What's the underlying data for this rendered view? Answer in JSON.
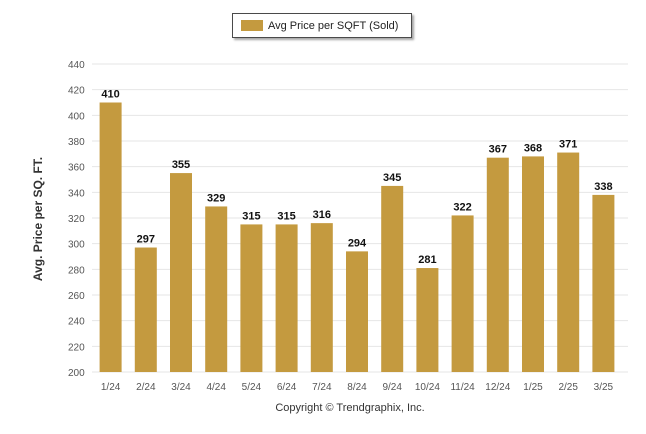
{
  "colors": {
    "bar": "#c49a3f",
    "grid": "#e6e6e6",
    "axis_text": "#555555",
    "label_text": "#111111"
  },
  "legend": {
    "label": "Avg Price per SQFT (Sold)"
  },
  "footer": {
    "copyright": "Copyright © Trendgraphix, Inc."
  },
  "chart_data": {
    "type": "bar",
    "title": "",
    "xlabel": "",
    "ylabel": "Avg. Price per SQ. FT.",
    "ylim": [
      200,
      440
    ],
    "ytick_step": 20,
    "grid": true,
    "legend_position": "top-center",
    "categories": [
      "1/24",
      "2/24",
      "3/24",
      "4/24",
      "5/24",
      "6/24",
      "7/24",
      "8/24",
      "9/24",
      "10/24",
      "11/24",
      "12/24",
      "1/25",
      "2/25",
      "3/25"
    ],
    "series": [
      {
        "name": "Avg Price per SQFT (Sold)",
        "values": [
          410,
          297,
          355,
          329,
          315,
          315,
          316,
          294,
          345,
          281,
          322,
          367,
          368,
          371,
          338
        ]
      }
    ]
  }
}
